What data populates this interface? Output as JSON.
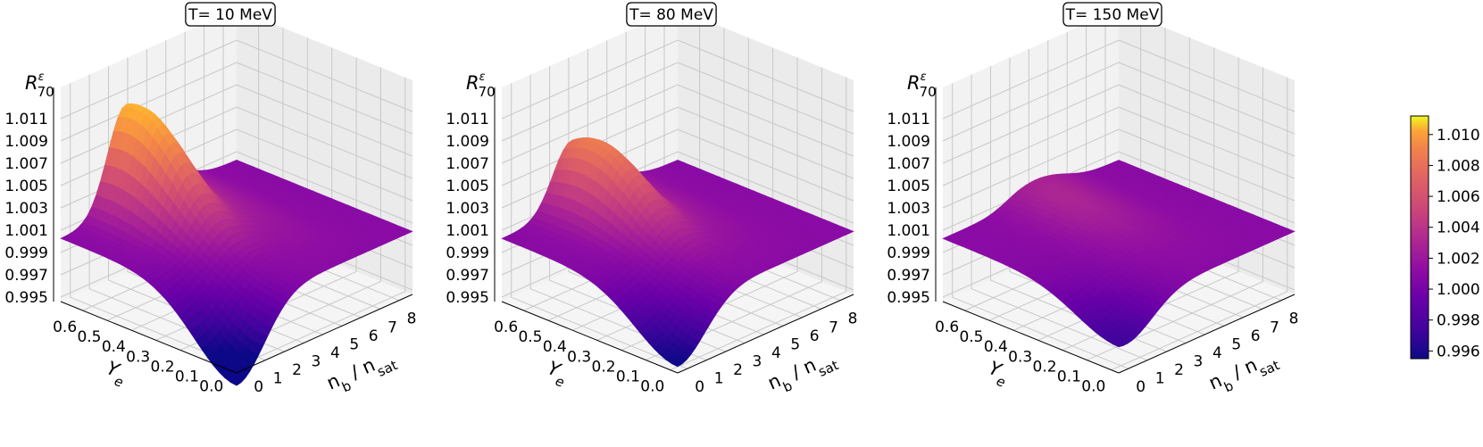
{
  "chart_data": [
    {
      "type": "surface3d",
      "title": "T= 10 MeV",
      "zlabel_html": [
        "R",
        "ε",
        "70"
      ],
      "xlabel_parts": [
        "n",
        "b",
        " / n",
        "sat"
      ],
      "ylabel_parts": [
        "Y",
        "e"
      ],
      "x_ticks": [
        "0",
        "1",
        "2",
        "3",
        "4",
        "5",
        "6",
        "7",
        "8"
      ],
      "y_ticks": [
        "0.0",
        "0.1",
        "0.2",
        "0.3",
        "0.4",
        "0.5",
        "0.6"
      ],
      "z_ticks": [
        "0.995",
        "0.997",
        "0.999",
        "1.001",
        "1.003",
        "1.005",
        "1.007",
        "1.009",
        "1.011"
      ],
      "xlim": [
        0,
        9
      ],
      "ylim": [
        0,
        0.65
      ],
      "zlim": [
        0.995,
        1.012
      ],
      "surface": {
        "base": 1.0,
        "peak_height": 0.0085,
        "peak_x": 3.3,
        "peak_y": 0.6,
        "dip_depth": -0.006,
        "dip_x": 0.0,
        "dip_y": 0.0,
        "ridge": 0.0015
      }
    },
    {
      "type": "surface3d",
      "title": "T= 80 MeV",
      "zlabel_html": [
        "R",
        "ε",
        "70"
      ],
      "xlabel_parts": [
        "n",
        "b",
        " / n",
        "sat"
      ],
      "ylabel_parts": [
        "Y",
        "e"
      ],
      "x_ticks": [
        "0",
        "1",
        "2",
        "3",
        "4",
        "5",
        "6",
        "7",
        "8"
      ],
      "y_ticks": [
        "0.0",
        "0.1",
        "0.2",
        "0.3",
        "0.4",
        "0.5",
        "0.6"
      ],
      "z_ticks": [
        "0.995",
        "0.997",
        "0.999",
        "1.001",
        "1.003",
        "1.005",
        "1.007",
        "1.009",
        "1.011"
      ],
      "xlim": [
        0,
        9
      ],
      "ylim": [
        0,
        0.65
      ],
      "zlim": [
        0.995,
        1.012
      ],
      "surface": {
        "base": 1.0,
        "peak_height": 0.006,
        "peak_x": 3.5,
        "peak_y": 0.55,
        "dip_depth": -0.0045,
        "dip_x": 0.0,
        "dip_y": 0.0,
        "ridge": 0.0012
      }
    },
    {
      "type": "surface3d",
      "title": "T= 150 MeV",
      "zlabel_html": [
        "R",
        "ε",
        "70"
      ],
      "xlabel_parts": [
        "n",
        "b",
        " / n",
        "sat"
      ],
      "ylabel_parts": [
        "Y",
        "e"
      ],
      "x_ticks": [
        "0",
        "1",
        "2",
        "3",
        "4",
        "5",
        "6",
        "7",
        "8"
      ],
      "y_ticks": [
        "0.0",
        "0.1",
        "0.2",
        "0.3",
        "0.4",
        "0.5",
        "0.6"
      ],
      "z_ticks": [
        "0.995",
        "0.997",
        "0.999",
        "1.001",
        "1.003",
        "1.005",
        "1.007",
        "1.009",
        "1.011"
      ],
      "xlim": [
        0,
        9
      ],
      "ylim": [
        0,
        0.65
      ],
      "zlim": [
        0.995,
        1.012
      ],
      "surface": {
        "base": 1.0,
        "peak_height": 0.0012,
        "peak_x": 4.0,
        "peak_y": 0.5,
        "dip_depth": -0.003,
        "dip_x": 0.3,
        "dip_y": 0.0,
        "ridge": 0.001
      }
    }
  ],
  "colorbar": {
    "colormap": "plasma",
    "range": [
      0.9955,
      1.0112
    ],
    "ticks": [
      "0.996",
      "0.998",
      "1.000",
      "1.002",
      "1.004",
      "1.006",
      "1.008",
      "1.010"
    ],
    "tick_values": [
      0.996,
      0.998,
      1.0,
      1.002,
      1.004,
      1.006,
      1.008,
      1.01
    ]
  }
}
